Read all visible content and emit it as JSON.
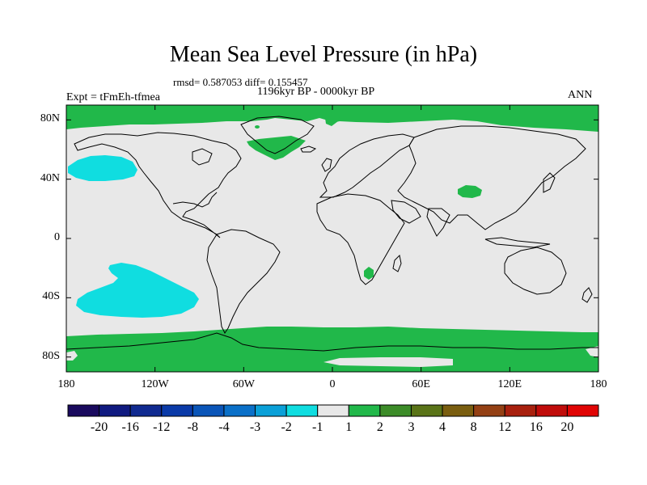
{
  "title": "Mean Sea Level Pressure (in hPa)",
  "stats_line": "rmsd= 0.587053 diff= 0.155457",
  "period_line": "1196kyr BP - 0000kyr BP",
  "experiment": "Expt = tFmEh-tfmea",
  "season": "ANN",
  "axes": {
    "lat_labels": [
      "80N",
      "40N",
      "0",
      "40S",
      "80S"
    ],
    "lat_values": [
      80,
      40,
      0,
      -40,
      -80
    ],
    "lon_labels": [
      "180",
      "120W",
      "60W",
      "0",
      "60E",
      "120E",
      "180"
    ],
    "lon_values": [
      -180,
      -120,
      -60,
      0,
      60,
      120,
      180
    ]
  },
  "colorbar": {
    "labels": [
      "-20",
      "-16",
      "-12",
      "-8",
      "-4",
      "-3",
      "-2",
      "-1",
      "1",
      "2",
      "3",
      "4",
      "8",
      "12",
      "16",
      "20"
    ],
    "colors": [
      "#1a0a5e",
      "#101a80",
      "#102a90",
      "#0a3aa8",
      "#0a55b8",
      "#0a70c8",
      "#0aa0d8",
      "#10dde0",
      "#e8e8e8",
      "#21b84a",
      "#3c8c28",
      "#5a7418",
      "#7a5e10",
      "#944014",
      "#a8200e",
      "#c00c0a",
      "#e00404"
    ]
  },
  "colors": {
    "neutral": "#e8e8e8",
    "positive_1_2": "#21b84a",
    "negative_2_1": "#10dde0",
    "coast": "#000000"
  }
}
